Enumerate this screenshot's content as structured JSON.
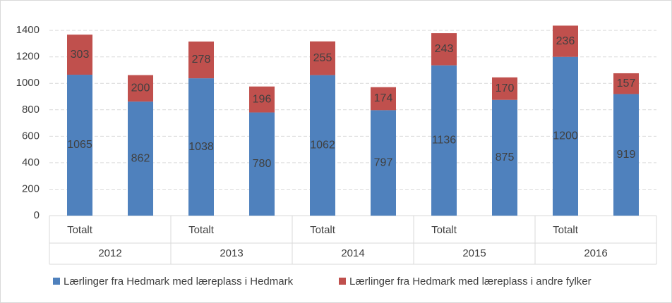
{
  "chart_data": {
    "type": "stacked-bar",
    "categories": [
      "Totalt",
      null,
      "Totalt",
      null,
      "Totalt",
      null,
      "Totalt",
      null,
      "Totalt",
      null
    ],
    "groups": [
      "2012",
      "2013",
      "2014",
      "2015",
      "2016"
    ],
    "series": [
      {
        "name": "Lærlinger fra Hedmark med læreplass i Hedmark",
        "color": "#4f81bd",
        "values": [
          1065,
          862,
          1038,
          780,
          1062,
          797,
          1136,
          875,
          1200,
          919
        ]
      },
      {
        "name": "Lærlinger fra Hedmark med læreplass i andre fylker",
        "color": "#c0504d",
        "values": [
          303,
          200,
          278,
          196,
          255,
          174,
          243,
          170,
          236,
          157
        ]
      }
    ],
    "ylim": [
      0,
      1470
    ],
    "yticks": [
      0,
      200,
      400,
      600,
      800,
      1000,
      1200,
      1400
    ],
    "grid": true,
    "legend": "bottom"
  }
}
